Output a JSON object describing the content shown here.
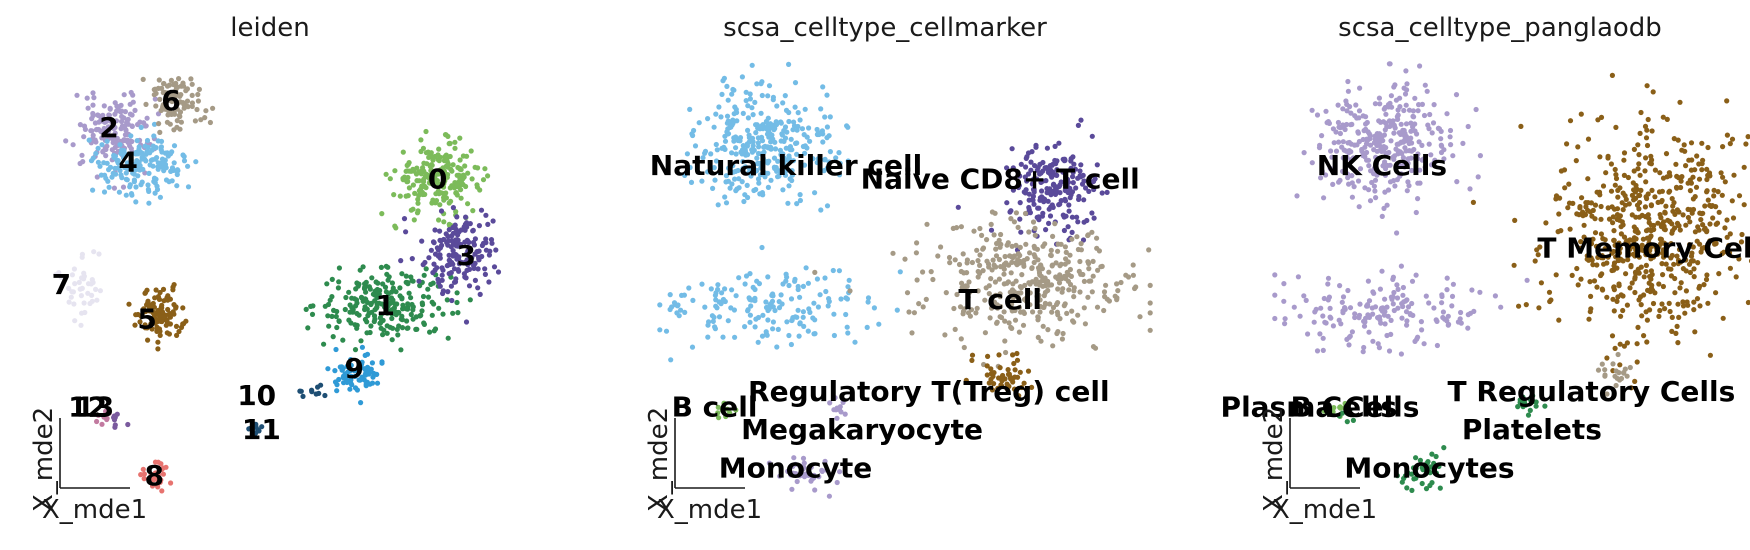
{
  "chart_data": [
    {
      "type": "scatter",
      "title": "leiden",
      "xlabel": "X_mde1",
      "ylabel": "X_mde2",
      "grid": false,
      "legend": "on data",
      "groups": [
        {
          "name": "0",
          "color": "#7cbb5a",
          "center": [
            0.62,
            0.33
          ],
          "spread": [
            0.09,
            0.09
          ],
          "n": 220
        },
        {
          "name": "1",
          "color": "#2e8b4e",
          "center": [
            0.4,
            -0.33
          ],
          "spread": [
            0.14,
            0.09
          ],
          "n": 230
        },
        {
          "name": "2",
          "color": "#a89acb",
          "center": [
            -0.74,
            0.58
          ],
          "spread": [
            0.08,
            0.1
          ],
          "n": 160
        },
        {
          "name": "3",
          "color": "#5a4a9a",
          "center": [
            0.72,
            -0.05
          ],
          "spread": [
            0.08,
            0.11
          ],
          "n": 170
        },
        {
          "name": "4",
          "color": "#73bce6",
          "center": [
            -0.62,
            0.4
          ],
          "spread": [
            0.09,
            0.08
          ],
          "n": 170
        },
        {
          "name": "5",
          "color": "#8a5f18",
          "center": [
            -0.54,
            -0.38
          ],
          "spread": [
            0.05,
            0.06
          ],
          "n": 110
        },
        {
          "name": "6",
          "color": "#a59a86",
          "center": [
            -0.48,
            0.73
          ],
          "spread": [
            0.06,
            0.07
          ],
          "n": 100
        },
        {
          "name": "7",
          "color": "#e6e4f0",
          "center": [
            -0.88,
            -0.22
          ],
          "spread": [
            0.05,
            0.1
          ],
          "n": 40
        },
        {
          "name": "8",
          "color": "#e7736f",
          "center": [
            -0.57,
            -1.22
          ],
          "spread": [
            0.03,
            0.04
          ],
          "n": 35
        },
        {
          "name": "9",
          "color": "#2f9ad6",
          "center": [
            0.28,
            -0.68
          ],
          "spread": [
            0.06,
            0.05
          ],
          "n": 70
        },
        {
          "name": "10",
          "color": "#1e4e73",
          "center": [
            0.09,
            -0.78
          ],
          "spread": [
            0.03,
            0.02
          ],
          "n": 10
        },
        {
          "name": "11",
          "color": "#1e4e73",
          "center": [
            -0.14,
            -0.98
          ],
          "spread": [
            0.02,
            0.02
          ],
          "n": 12
        },
        {
          "name": "12",
          "color": "#c27aa0",
          "center": [
            -0.78,
            -0.92
          ],
          "spread": [
            0.02,
            0.02
          ],
          "n": 8
        },
        {
          "name": "13",
          "color": "#7a5a9e",
          "center": [
            -0.72,
            -0.94
          ],
          "spread": [
            0.02,
            0.02
          ],
          "n": 8
        }
      ],
      "labels": [
        {
          "text": "0",
          "at": [
            0.62,
            0.33
          ]
        },
        {
          "text": "1",
          "at": [
            0.4,
            -0.33
          ]
        },
        {
          "text": "2",
          "at": [
            -0.76,
            0.6
          ]
        },
        {
          "text": "3",
          "at": [
            0.74,
            -0.07
          ]
        },
        {
          "text": "4",
          "at": [
            -0.68,
            0.42
          ]
        },
        {
          "text": "5",
          "at": [
            -0.6,
            -0.4
          ]
        },
        {
          "text": "6",
          "at": [
            -0.5,
            0.74
          ]
        },
        {
          "text": "7",
          "at": [
            -0.96,
            -0.22
          ]
        },
        {
          "text": "8",
          "at": [
            -0.57,
            -1.22
          ]
        },
        {
          "text": "9",
          "at": [
            0.27,
            -0.66
          ]
        },
        {
          "text": "10",
          "at": [
            -0.14,
            -0.8
          ]
        },
        {
          "text": "11",
          "at": [
            -0.12,
            -0.98
          ]
        },
        {
          "text": "12",
          "at": [
            -0.85,
            -0.86
          ]
        },
        {
          "text": "13",
          "at": [
            -0.82,
            -0.86
          ]
        }
      ]
    },
    {
      "type": "scatter",
      "title": "scsa_celltype_cellmarker",
      "xlabel": "X_mde1",
      "ylabel": "X_mde2",
      "grid": false,
      "legend": "on data",
      "groups": [
        {
          "name": "Natural killer cell",
          "color": "#73bce6",
          "center": [
            -0.58,
            0.5
          ],
          "spread": [
            0.14,
            0.16
          ],
          "n": 330
        },
        {
          "name": "Natural killer cell",
          "color": "#73bce6",
          "center": [
            -0.6,
            -0.35
          ],
          "spread": [
            0.24,
            0.1
          ],
          "n": 170
        },
        {
          "name": "Naive CD8+ T cell",
          "color": "#5a4a9a",
          "center": [
            0.62,
            0.28
          ],
          "spread": [
            0.09,
            0.11
          ],
          "n": 200
        },
        {
          "name": "T cell",
          "color": "#a59a86",
          "center": [
            0.5,
            -0.22
          ],
          "spread": [
            0.22,
            0.15
          ],
          "n": 380
        },
        {
          "name": "Regulatory T(Treg) cell",
          "color": "#8a5f18",
          "center": [
            0.42,
            -0.7
          ],
          "spread": [
            0.06,
            0.05
          ],
          "n": 50
        },
        {
          "name": "B cell",
          "color": "#7cbb5a",
          "center": [
            -0.78,
            -0.88
          ],
          "spread": [
            0.03,
            0.02
          ],
          "n": 10
        },
        {
          "name": "Megakaryocyte",
          "color": "#a89acb",
          "center": [
            -0.28,
            -0.88
          ],
          "spread": [
            0.03,
            0.03
          ],
          "n": 12
        },
        {
          "name": "Monocyte",
          "color": "#a89acb",
          "center": [
            -0.42,
            -1.2
          ],
          "spread": [
            0.05,
            0.05
          ],
          "n": 40
        }
      ],
      "labels": [
        {
          "text": "Natural killer cell",
          "at": [
            -0.5,
            0.4
          ]
        },
        {
          "text": "Naive CD8+ T cell",
          "at": [
            0.4,
            0.33
          ]
        },
        {
          "text": "T cell",
          "at": [
            0.4,
            -0.3
          ]
        },
        {
          "text": "Regulatory T(Treg) cell",
          "at": [
            0.1,
            -0.78
          ]
        },
        {
          "text": "B cell",
          "at": [
            -0.8,
            -0.86
          ]
        },
        {
          "text": "Megakaryocyte",
          "at": [
            -0.18,
            -0.98
          ]
        },
        {
          "text": "Monocyte",
          "at": [
            -0.46,
            -1.18
          ]
        }
      ]
    },
    {
      "type": "scatter",
      "title": "scsa_celltype_panglaodb",
      "xlabel": "X_mde1",
      "ylabel": "X_mde2",
      "grid": false,
      "legend": "on data",
      "groups": [
        {
          "name": "NK Cells",
          "color": "#a89acb",
          "center": [
            -0.58,
            0.5
          ],
          "spread": [
            0.14,
            0.16
          ],
          "n": 330
        },
        {
          "name": "NK Cells",
          "color": "#a89acb",
          "center": [
            -0.6,
            -0.35
          ],
          "spread": [
            0.24,
            0.1
          ],
          "n": 170
        },
        {
          "name": "T Memory Cells",
          "color": "#8a5f18",
          "center": [
            0.55,
            0.05
          ],
          "spread": [
            0.22,
            0.28
          ],
          "n": 600
        },
        {
          "name": "T Regulatory Cells",
          "color": "#a59a86",
          "center": [
            0.4,
            -0.68
          ],
          "spread": [
            0.05,
            0.04
          ],
          "n": 20
        },
        {
          "name": "Platelets",
          "color": "#2e8b4e",
          "center": [
            0.05,
            -0.84
          ],
          "spread": [
            0.03,
            0.03
          ],
          "n": 15
        },
        {
          "name": "Plasma Cells",
          "color": "#7cbb5a",
          "center": [
            -0.78,
            -0.88
          ],
          "spread": [
            0.03,
            0.02
          ],
          "n": 10
        },
        {
          "name": "B Cells",
          "color": "#2e8b4e",
          "center": [
            -0.72,
            -0.9
          ],
          "spread": [
            0.02,
            0.02
          ],
          "n": 6
        },
        {
          "name": "Monocytes",
          "color": "#2e8b4e",
          "center": [
            -0.4,
            -1.2
          ],
          "spread": [
            0.05,
            0.05
          ],
          "n": 40
        }
      ],
      "labels": [
        {
          "text": "NK Cells",
          "at": [
            -0.58,
            0.4
          ]
        },
        {
          "text": "T Memory Cells",
          "at": [
            0.58,
            -0.03
          ]
        },
        {
          "text": "T Regulatory Cells",
          "at": [
            0.3,
            -0.78
          ]
        },
        {
          "text": "Platelets",
          "at": [
            0.05,
            -0.98
          ]
        },
        {
          "text": "Plasma Cells",
          "at": [
            -0.84,
            -0.86
          ]
        },
        {
          "text": "B Cells",
          "at": [
            -0.74,
            -0.86
          ]
        },
        {
          "text": "Monocytes",
          "at": [
            -0.38,
            -1.18
          ]
        }
      ]
    }
  ]
}
